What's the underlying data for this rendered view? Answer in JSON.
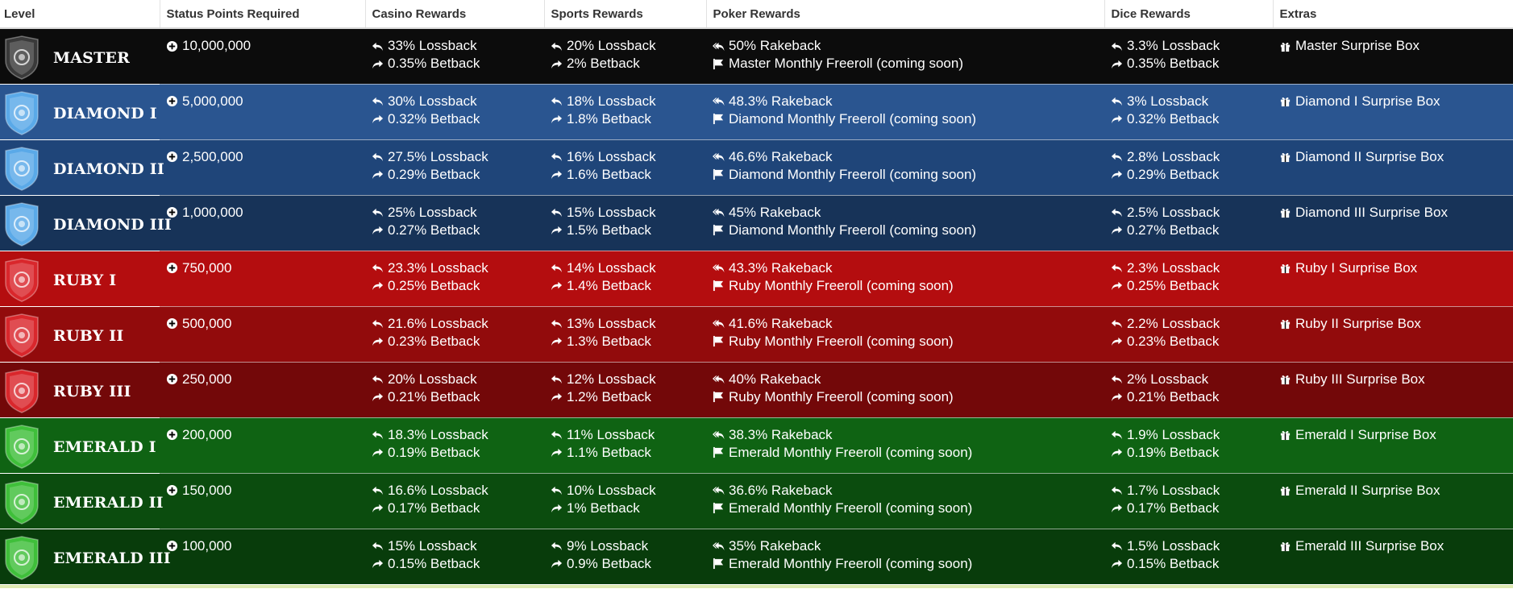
{
  "headers": {
    "level": "Level",
    "status": "Status Points Required",
    "casino": "Casino Rewards",
    "sports": "Sports Rewards",
    "poker": "Poker Rewards",
    "dice": "Dice Rewards",
    "extras": "Extras"
  },
  "rows": [
    {
      "level": "MASTER",
      "points": "10,000,000",
      "casino_loss": "33% Lossback",
      "casino_bet": "0.35% Betback",
      "sports_loss": "20% Lossback",
      "sports_bet": "2% Betback",
      "poker_rake": "50% Rakeback",
      "poker_freeroll": "Master Monthly Freeroll (coming soon)",
      "dice_loss": "3.3% Lossback",
      "dice_bet": "0.35% Betback",
      "extra": "Master Surprise Box",
      "badge_color": "#3a3a3a"
    },
    {
      "level": "DIAMOND I",
      "points": "5,000,000",
      "casino_loss": "30% Lossback",
      "casino_bet": "0.32% Betback",
      "sports_loss": "18% Lossback",
      "sports_bet": "1.8% Betback",
      "poker_rake": "48.3% Rakeback",
      "poker_freeroll": "Diamond Monthly Freeroll (coming soon)",
      "dice_loss": "3% Lossback",
      "dice_bet": "0.32% Betback",
      "extra": "Diamond I Surprise Box",
      "badge_color": "#5aa9e8"
    },
    {
      "level": "DIAMOND II",
      "points": "2,500,000",
      "casino_loss": "27.5% Lossback",
      "casino_bet": "0.29% Betback",
      "sports_loss": "16% Lossback",
      "sports_bet": "1.6% Betback",
      "poker_rake": "46.6% Rakeback",
      "poker_freeroll": "Diamond Monthly Freeroll (coming soon)",
      "dice_loss": "2.8% Lossback",
      "dice_bet": "0.29% Betback",
      "extra": "Diamond II Surprise Box",
      "badge_color": "#5aa9e8"
    },
    {
      "level": "DIAMOND III",
      "points": "1,000,000",
      "casino_loss": "25% Lossback",
      "casino_bet": "0.27% Betback",
      "sports_loss": "15% Lossback",
      "sports_bet": "1.5% Betback",
      "poker_rake": "45% Rakeback",
      "poker_freeroll": "Diamond Monthly Freeroll (coming soon)",
      "dice_loss": "2.5% Lossback",
      "dice_bet": "0.27% Betback",
      "extra": "Diamond III Surprise Box",
      "badge_color": "#5aa9e8"
    },
    {
      "level": "RUBY I",
      "points": "750,000",
      "casino_loss": "23.3% Lossback",
      "casino_bet": "0.25% Betback",
      "sports_loss": "14% Lossback",
      "sports_bet": "1.4% Betback",
      "poker_rake": "43.3% Rakeback",
      "poker_freeroll": "Ruby Monthly Freeroll (coming soon)",
      "dice_loss": "2.3% Lossback",
      "dice_bet": "0.25% Betback",
      "extra": "Ruby I Surprise Box",
      "badge_color": "#d9272c"
    },
    {
      "level": "RUBY II",
      "points": "500,000",
      "casino_loss": "21.6% Lossback",
      "casino_bet": "0.23% Betback",
      "sports_loss": "13% Lossback",
      "sports_bet": "1.3% Betback",
      "poker_rake": "41.6% Rakeback",
      "poker_freeroll": "Ruby Monthly Freeroll (coming soon)",
      "dice_loss": "2.2% Lossback",
      "dice_bet": "0.23% Betback",
      "extra": "Ruby II Surprise Box",
      "badge_color": "#d9272c"
    },
    {
      "level": "RUBY III",
      "points": "250,000",
      "casino_loss": "20% Lossback",
      "casino_bet": "0.21% Betback",
      "sports_loss": "12% Lossback",
      "sports_bet": "1.2% Betback",
      "poker_rake": "40% Rakeback",
      "poker_freeroll": "Ruby Monthly Freeroll (coming soon)",
      "dice_loss": "2% Lossback",
      "dice_bet": "0.21% Betback",
      "extra": "Ruby III Surprise Box",
      "badge_color": "#d9272c"
    },
    {
      "level": "EMERALD I",
      "points": "200,000",
      "casino_loss": "18.3% Lossback",
      "casino_bet": "0.19% Betback",
      "sports_loss": "11% Lossback",
      "sports_bet": "1.1% Betback",
      "poker_rake": "38.3% Rakeback",
      "poker_freeroll": "Emerald Monthly Freeroll (coming soon)",
      "dice_loss": "1.9% Lossback",
      "dice_bet": "0.19% Betback",
      "extra": "Emerald I Surprise Box",
      "badge_color": "#3fbf3a"
    },
    {
      "level": "EMERALD II",
      "points": "150,000",
      "casino_loss": "16.6% Lossback",
      "casino_bet": "0.17% Betback",
      "sports_loss": "10% Lossback",
      "sports_bet": "1% Betback",
      "poker_rake": "36.6% Rakeback",
      "poker_freeroll": "Emerald Monthly Freeroll (coming soon)",
      "dice_loss": "1.7% Lossback",
      "dice_bet": "0.17% Betback",
      "extra": "Emerald II Surprise Box",
      "badge_color": "#3fbf3a"
    },
    {
      "level": "EMERALD III",
      "points": "100,000",
      "casino_loss": "15% Lossback",
      "casino_bet": "0.15% Betback",
      "sports_loss": "9% Lossback",
      "sports_bet": "0.9% Betback",
      "poker_rake": "35% Rakeback",
      "poker_freeroll": "Emerald Monthly Freeroll (coming soon)",
      "dice_loss": "1.5% Lossback",
      "dice_bet": "0.15% Betback",
      "extra": "Emerald III Surprise Box",
      "badge_color": "#3fbf3a"
    }
  ],
  "row_classes": [
    "master",
    "dia1",
    "dia2",
    "dia3",
    "ruby1",
    "ruby2",
    "ruby3",
    "em1",
    "em2",
    "em3"
  ]
}
